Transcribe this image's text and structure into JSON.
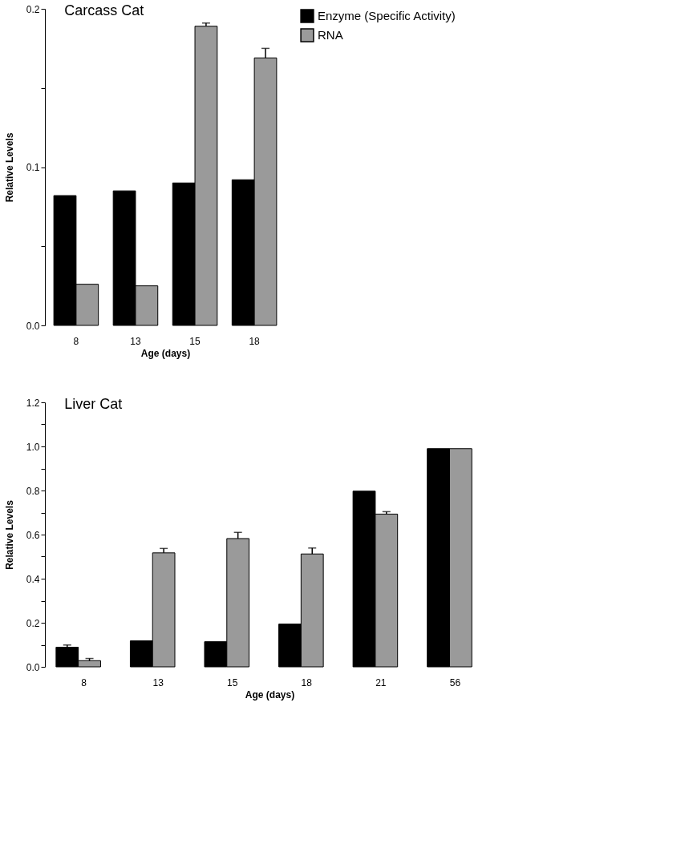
{
  "chart_data": [
    {
      "type": "bar",
      "title": "Carcass Cat",
      "xlabel": "Age (days)",
      "ylabel": "Relative Levels",
      "categories": [
        "8",
        "13",
        "15",
        "18"
      ],
      "series": [
        {
          "name": "Enzyme (Specific Activity)",
          "color": "#000000",
          "values": [
            0.082,
            0.085,
            0.09,
            0.092
          ]
        },
        {
          "name": "RNA",
          "color": "#9a9a9a",
          "values": [
            0.026,
            0.025,
            0.189,
            0.169
          ],
          "errors": [
            null,
            null,
            0.002,
            0.006
          ]
        }
      ],
      "ylim": [
        0,
        0.2
      ],
      "yticks": [
        {
          "value": 0,
          "label": "0.0"
        },
        {
          "value": 0.05,
          "label": null
        },
        {
          "value": 0.1,
          "label": "0.1"
        },
        {
          "value": 0.15,
          "label": null
        },
        {
          "value": 0.2,
          "label": "0.2"
        }
      ],
      "legend": "right",
      "grid": false
    },
    {
      "type": "bar",
      "title": "Liver Cat",
      "xlabel": "Age (days)",
      "ylabel": "Relative Levels",
      "categories": [
        "8",
        "13",
        "15",
        "18",
        "21",
        "56"
      ],
      "series": [
        {
          "color": "#000000",
          "values": [
            0.089,
            0.118,
            0.114,
            0.194,
            0.797,
            0.99
          ],
          "errors": [
            0.01,
            null,
            null,
            null,
            null,
            null
          ]
        },
        {
          "color": "#9a9a9a",
          "values": [
            0.028,
            0.517,
            0.582,
            0.512,
            0.693,
            0.99
          ],
          "errors": [
            0.01,
            0.02,
            0.028,
            0.027,
            0.011,
            null
          ]
        }
      ],
      "ylim": [
        0,
        1.2
      ],
      "yticks": [
        {
          "value": 0,
          "label": "0.0"
        },
        {
          "value": 0.1,
          "label": null
        },
        {
          "value": 0.2,
          "label": "0.2"
        },
        {
          "value": 0.3,
          "label": null
        },
        {
          "value": 0.4,
          "label": "0.4"
        },
        {
          "value": 0.5,
          "label": null
        },
        {
          "value": 0.6,
          "label": "0.6"
        },
        {
          "value": 0.7,
          "label": null
        },
        {
          "value": 0.8,
          "label": "0.8"
        },
        {
          "value": 0.9,
          "label": null
        },
        {
          "value": 1.0,
          "label": "1.0"
        },
        {
          "value": 1.1,
          "label": null
        },
        {
          "value": 1.2,
          "label": "1.2"
        }
      ],
      "grid": false
    }
  ]
}
